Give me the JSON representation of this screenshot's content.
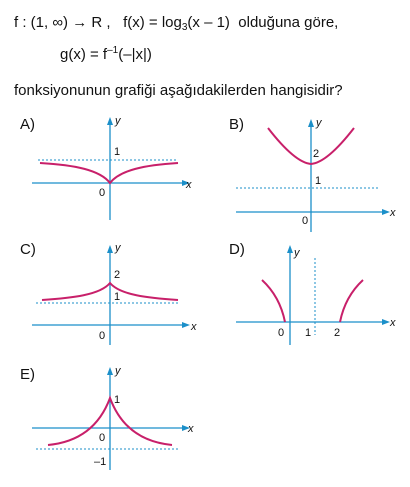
{
  "question": {
    "line1": {
      "f_def": "f : (1, ∞) → R ,",
      "f_eq_pre": "f(x) = log",
      "f_base": "3",
      "f_eq_post": "(x – 1)",
      "tail": "olduğuna göre,"
    },
    "line2": {
      "pre": "g(x) = f",
      "sup": "–1",
      "post": "(–|x|)"
    },
    "line3": "fonksiyonunun grafiği aşağıdakilerden hangisidir?"
  },
  "options": [
    {
      "letter": "A)",
      "labels": {
        "x": "x",
        "y": "y",
        "origin": "0",
        "asymptote": "1"
      }
    },
    {
      "letter": "B)",
      "labels": {
        "x": "x",
        "y": "y",
        "origin": "0",
        "asymptote": "1",
        "value": "2"
      }
    },
    {
      "letter": "C)",
      "labels": {
        "x": "x",
        "y": "y",
        "origin": "0",
        "asymptote": "1",
        "value": "2"
      }
    },
    {
      "letter": "D)",
      "labels": {
        "x": "x",
        "y": "y",
        "origin": "0",
        "tick1": "1",
        "tick2": "2"
      }
    },
    {
      "letter": "E)",
      "labels": {
        "x": "x",
        "y": "y",
        "origin": "0",
        "peak": "1",
        "asymptote": "–1"
      }
    }
  ],
  "colors": {
    "axis": "#1b8fc9",
    "curve": "#c8206a",
    "asymptote": "#1b8fc9"
  }
}
